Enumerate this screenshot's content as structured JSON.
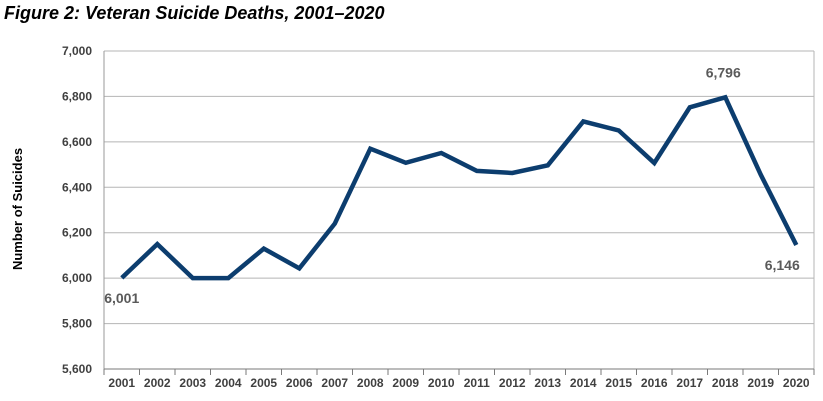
{
  "chart_data": {
    "type": "line",
    "title": "Figure 2: Veteran Suicide Deaths, 2001–2020",
    "xlabel": "",
    "ylabel": "Number of Suicides",
    "ylim": [
      5600,
      7000
    ],
    "yticks": [
      5600,
      5800,
      6000,
      6200,
      6400,
      6600,
      6800,
      7000
    ],
    "ytick_labels": [
      "5,600",
      "5,800",
      "6,000",
      "6,200",
      "6,400",
      "6,600",
      "6,800",
      "7,000"
    ],
    "grid": true,
    "categories": [
      "2001",
      "2002",
      "2003",
      "2004",
      "2005",
      "2006",
      "2007",
      "2008",
      "2009",
      "2010",
      "2011",
      "2012",
      "2013",
      "2014",
      "2015",
      "2016",
      "2017",
      "2018",
      "2019",
      "2020"
    ],
    "series": [
      {
        "values": [
          6001,
          6150,
          6000,
          6000,
          6130,
          6043,
          6240,
          6570,
          6508,
          6551,
          6472,
          6463,
          6497,
          6690,
          6650,
          6507,
          6752,
          6796,
          6455,
          6146
        ],
        "color": "#0c3d6e"
      }
    ],
    "annotations": [
      {
        "index": 0,
        "text": "6,001"
      },
      {
        "index": 17,
        "text": "6,796"
      },
      {
        "index": 19,
        "text": "6,146"
      }
    ]
  }
}
